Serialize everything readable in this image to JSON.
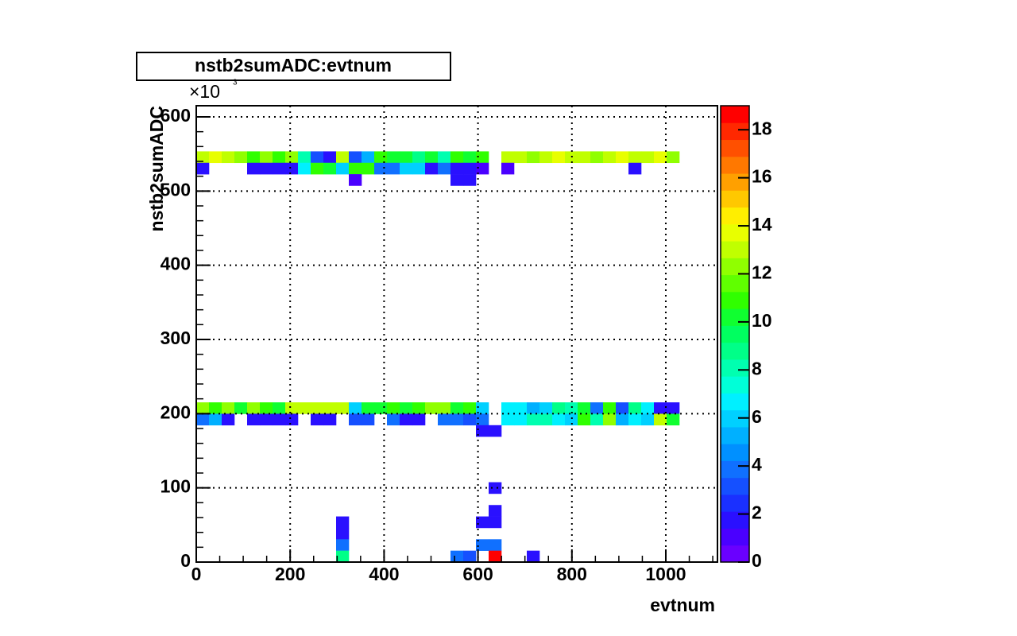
{
  "chart_data": {
    "type": "heatmap",
    "title": "nstb2sumADC:evtnum",
    "x_label": "evtnum",
    "y_label": "nstb2sumADC",
    "y_multiplier": "×10",
    "y_multiplier_exponent": "3",
    "xlim": [
      0,
      1110
    ],
    "ylim": [
      0,
      615
    ],
    "nbinsx": 41,
    "nbinsy": 40,
    "xticks": [
      0,
      200,
      400,
      600,
      800,
      1000
    ],
    "yticks": [
      0,
      100,
      200,
      300,
      400,
      500,
      600
    ],
    "zlim": [
      0,
      19
    ],
    "zticks": [
      0,
      2,
      4,
      6,
      8,
      10,
      12,
      14,
      16,
      18
    ],
    "grid": true,
    "palette": [
      "#6a00ff",
      "#4a00ff",
      "#2a10ff",
      "#1a30ff",
      "#1550ff",
      "#1070ff",
      "#0090ff",
      "#00b0ff",
      "#00d0ff",
      "#00f0ff",
      "#00ffd8",
      "#00ffb0",
      "#00ff88",
      "#00ff60",
      "#10ff30",
      "#30ff00",
      "#60ff00",
      "#90ff00",
      "#c0ff00",
      "#e8ff00",
      "#ffee00",
      "#ffc800",
      "#ffa000",
      "#ff7800",
      "#ff5000",
      "#ff2800",
      "#ff0000"
    ],
    "cells": [
      [
        0,
        35,
        13
      ],
      [
        1,
        35,
        14
      ],
      [
        2,
        35,
        13
      ],
      [
        3,
        35,
        12
      ],
      [
        4,
        35,
        11
      ],
      [
        5,
        35,
        12
      ],
      [
        6,
        35,
        11
      ],
      [
        7,
        35,
        12
      ],
      [
        8,
        35,
        8
      ],
      [
        9,
        35,
        3
      ],
      [
        10,
        35,
        2
      ],
      [
        11,
        35,
        13
      ],
      [
        12,
        35,
        3
      ],
      [
        13,
        35,
        5
      ],
      [
        14,
        35,
        11
      ],
      [
        15,
        35,
        10
      ],
      [
        16,
        35,
        10
      ],
      [
        17,
        35,
        9
      ],
      [
        18,
        35,
        10
      ],
      [
        19,
        35,
        8
      ],
      [
        20,
        35,
        11
      ],
      [
        21,
        35,
        10
      ],
      [
        22,
        35,
        11
      ],
      [
        24,
        35,
        13
      ],
      [
        25,
        35,
        13
      ],
      [
        26,
        35,
        12
      ],
      [
        27,
        35,
        13
      ],
      [
        28,
        35,
        14
      ],
      [
        29,
        35,
        13
      ],
      [
        30,
        35,
        13
      ],
      [
        31,
        35,
        12
      ],
      [
        32,
        35,
        13
      ],
      [
        33,
        35,
        14
      ],
      [
        34,
        35,
        13
      ],
      [
        35,
        35,
        13
      ],
      [
        36,
        35,
        14
      ],
      [
        37,
        35,
        12
      ],
      [
        0,
        34,
        2
      ],
      [
        4,
        34,
        2
      ],
      [
        5,
        34,
        2
      ],
      [
        6,
        34,
        2
      ],
      [
        7,
        34,
        2
      ],
      [
        8,
        34,
        7
      ],
      [
        9,
        34,
        11
      ],
      [
        10,
        34,
        10
      ],
      [
        11,
        34,
        6
      ],
      [
        12,
        34,
        11
      ],
      [
        13,
        34,
        11
      ],
      [
        14,
        34,
        4
      ],
      [
        15,
        34,
        4
      ],
      [
        16,
        34,
        6
      ],
      [
        17,
        34,
        6
      ],
      [
        18,
        34,
        2
      ],
      [
        19,
        34,
        4
      ],
      [
        20,
        34,
        2
      ],
      [
        21,
        34,
        2
      ],
      [
        22,
        34,
        1
      ],
      [
        24,
        34,
        1
      ],
      [
        34,
        34,
        2
      ],
      [
        12,
        33,
        1
      ],
      [
        20,
        33,
        2
      ],
      [
        21,
        33,
        2
      ],
      [
        0,
        13,
        12
      ],
      [
        1,
        13,
        11
      ],
      [
        2,
        13,
        12
      ],
      [
        3,
        13,
        10
      ],
      [
        4,
        13,
        12
      ],
      [
        5,
        13,
        11
      ],
      [
        6,
        13,
        10
      ],
      [
        7,
        13,
        13
      ],
      [
        8,
        13,
        13
      ],
      [
        9,
        13,
        13
      ],
      [
        10,
        13,
        13
      ],
      [
        11,
        13,
        13
      ],
      [
        12,
        13,
        6
      ],
      [
        13,
        13,
        10
      ],
      [
        14,
        13,
        10
      ],
      [
        15,
        13,
        11
      ],
      [
        16,
        13,
        10
      ],
      [
        17,
        13,
        11
      ],
      [
        18,
        13,
        12
      ],
      [
        19,
        13,
        12
      ],
      [
        20,
        13,
        10
      ],
      [
        21,
        13,
        11
      ],
      [
        22,
        13,
        6
      ],
      [
        24,
        13,
        7
      ],
      [
        25,
        13,
        7
      ],
      [
        26,
        13,
        5
      ],
      [
        27,
        13,
        6
      ],
      [
        28,
        13,
        9
      ],
      [
        29,
        13,
        8
      ],
      [
        30,
        13,
        10
      ],
      [
        31,
        13,
        4
      ],
      [
        32,
        13,
        11
      ],
      [
        33,
        13,
        3
      ],
      [
        34,
        13,
        9
      ],
      [
        35,
        13,
        7
      ],
      [
        36,
        13,
        2
      ],
      [
        37,
        13,
        2
      ],
      [
        0,
        12,
        4
      ],
      [
        1,
        12,
        5
      ],
      [
        2,
        12,
        2
      ],
      [
        4,
        12,
        2
      ],
      [
        5,
        12,
        2
      ],
      [
        6,
        12,
        2
      ],
      [
        7,
        12,
        2
      ],
      [
        9,
        12,
        2
      ],
      [
        10,
        12,
        2
      ],
      [
        12,
        12,
        3
      ],
      [
        13,
        12,
        3
      ],
      [
        15,
        12,
        4
      ],
      [
        16,
        12,
        2
      ],
      [
        17,
        12,
        2
      ],
      [
        19,
        12,
        4
      ],
      [
        20,
        12,
        4
      ],
      [
        21,
        12,
        3
      ],
      [
        22,
        12,
        4
      ],
      [
        24,
        12,
        7
      ],
      [
        25,
        12,
        7
      ],
      [
        26,
        12,
        8
      ],
      [
        27,
        12,
        8
      ],
      [
        28,
        12,
        7
      ],
      [
        29,
        12,
        6
      ],
      [
        30,
        12,
        11
      ],
      [
        31,
        12,
        8
      ],
      [
        32,
        12,
        12
      ],
      [
        33,
        12,
        5
      ],
      [
        34,
        12,
        7
      ],
      [
        35,
        12,
        6
      ],
      [
        36,
        12,
        13
      ],
      [
        37,
        12,
        10
      ],
      [
        22,
        11,
        2
      ],
      [
        23,
        11,
        2
      ],
      [
        23,
        6,
        2
      ],
      [
        23,
        4,
        2
      ],
      [
        22,
        3,
        2
      ],
      [
        23,
        3,
        2
      ],
      [
        11,
        3,
        2
      ],
      [
        11,
        2,
        2
      ],
      [
        11,
        1,
        4
      ],
      [
        11,
        0,
        9
      ],
      [
        22,
        1,
        4
      ],
      [
        23,
        1,
        4
      ],
      [
        20,
        0,
        4
      ],
      [
        21,
        0,
        3
      ],
      [
        23,
        0,
        19
      ],
      [
        26,
        0,
        2
      ]
    ]
  }
}
